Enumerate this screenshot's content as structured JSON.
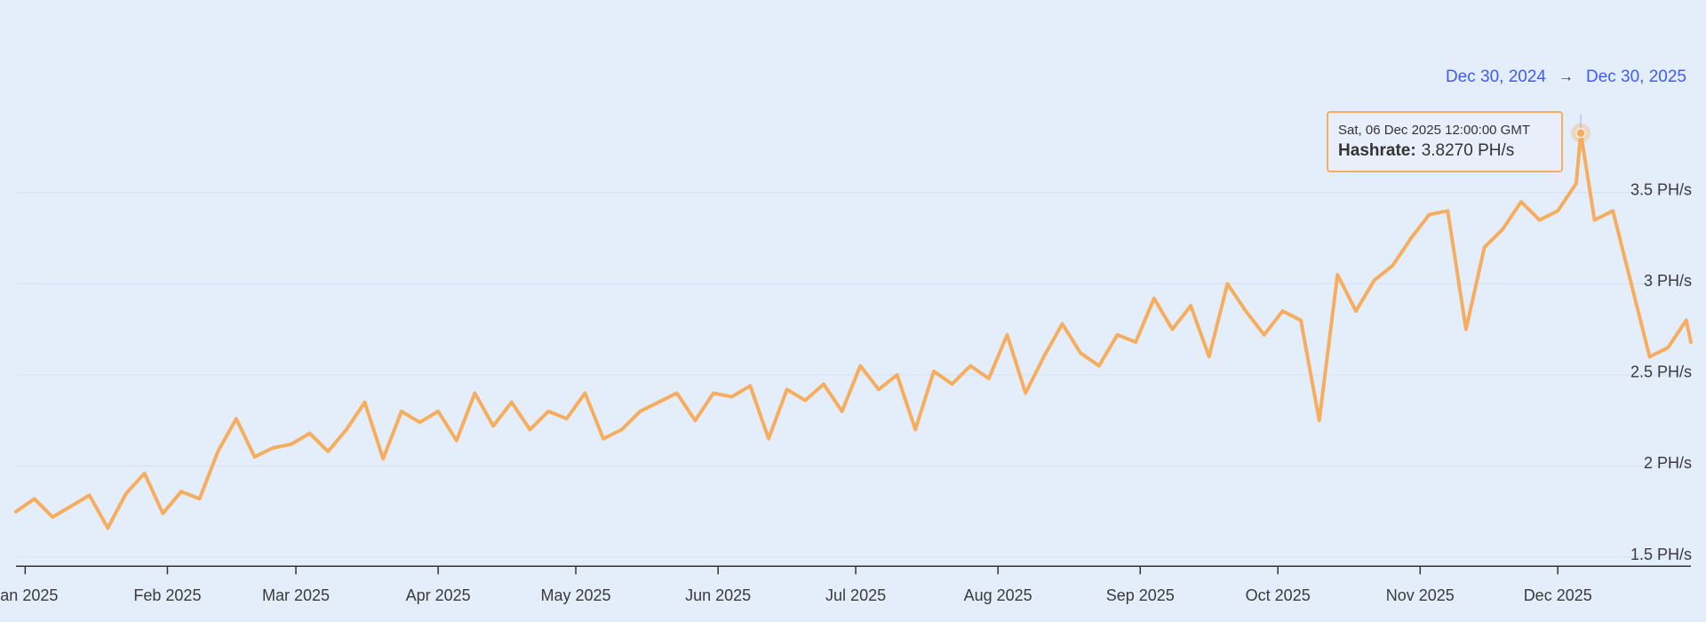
{
  "chart_data": {
    "type": "line",
    "range": {
      "start": "Dec 30, 2024",
      "separator": "→",
      "end": "Dec 30, 2025"
    },
    "x": [
      "2024-12-30",
      "2025-01-03",
      "2025-01-07",
      "2025-01-11",
      "2025-01-15",
      "2025-01-19",
      "2025-01-23",
      "2025-01-27",
      "2025-01-31",
      "2025-02-04",
      "2025-02-08",
      "2025-02-12",
      "2025-02-16",
      "2025-02-20",
      "2025-02-24",
      "2025-02-28",
      "2025-03-04",
      "2025-03-08",
      "2025-03-12",
      "2025-03-16",
      "2025-03-20",
      "2025-03-24",
      "2025-03-28",
      "2025-04-01",
      "2025-04-05",
      "2025-04-09",
      "2025-04-13",
      "2025-04-17",
      "2025-04-21",
      "2025-04-25",
      "2025-04-29",
      "2025-05-03",
      "2025-05-07",
      "2025-05-11",
      "2025-05-15",
      "2025-05-19",
      "2025-05-23",
      "2025-05-27",
      "2025-05-31",
      "2025-06-04",
      "2025-06-08",
      "2025-06-12",
      "2025-06-16",
      "2025-06-20",
      "2025-06-24",
      "2025-06-28",
      "2025-07-02",
      "2025-07-06",
      "2025-07-10",
      "2025-07-14",
      "2025-07-18",
      "2025-07-22",
      "2025-07-26",
      "2025-07-30",
      "2025-08-03",
      "2025-08-07",
      "2025-08-11",
      "2025-08-15",
      "2025-08-19",
      "2025-08-23",
      "2025-08-27",
      "2025-08-31",
      "2025-09-04",
      "2025-09-08",
      "2025-09-12",
      "2025-09-16",
      "2025-09-20",
      "2025-09-24",
      "2025-09-28",
      "2025-10-02",
      "2025-10-06",
      "2025-10-10",
      "2025-10-14",
      "2025-10-18",
      "2025-10-22",
      "2025-10-26",
      "2025-10-30",
      "2025-11-03",
      "2025-11-07",
      "2025-11-11",
      "2025-11-15",
      "2025-11-19",
      "2025-11-23",
      "2025-11-27",
      "2025-12-01",
      "2025-12-05",
      "2025-12-06",
      "2025-12-09",
      "2025-12-13",
      "2025-12-17",
      "2025-12-21",
      "2025-12-25",
      "2025-12-29",
      "2025-12-30"
    ],
    "series": [
      {
        "color": "#f6ad5e",
        "values": [
          1.75,
          1.82,
          1.72,
          1.78,
          1.84,
          1.66,
          1.85,
          1.96,
          1.74,
          1.86,
          1.82,
          2.08,
          2.26,
          2.05,
          2.1,
          2.12,
          2.18,
          2.08,
          2.2,
          2.35,
          2.04,
          2.3,
          2.24,
          2.3,
          2.14,
          2.4,
          2.22,
          2.35,
          2.2,
          2.3,
          2.26,
          2.4,
          2.15,
          2.2,
          2.3,
          2.35,
          2.4,
          2.25,
          2.4,
          2.38,
          2.44,
          2.15,
          2.42,
          2.36,
          2.45,
          2.3,
          2.55,
          2.42,
          2.5,
          2.2,
          2.52,
          2.45,
          2.55,
          2.48,
          2.72,
          2.4,
          2.6,
          2.78,
          2.62,
          2.55,
          2.72,
          2.68,
          2.92,
          2.75,
          2.88,
          2.6,
          3.0,
          2.85,
          2.72,
          2.85,
          2.8,
          2.25,
          3.05,
          2.85,
          3.02,
          3.1,
          3.25,
          3.38,
          3.4,
          2.75,
          3.2,
          3.3,
          3.45,
          3.35,
          3.4,
          3.55,
          3.827,
          3.35,
          3.4,
          3.0,
          2.6,
          2.65,
          2.8,
          2.68
        ]
      }
    ],
    "xlim": [
      "2024-12-30",
      "2025-12-30"
    ],
    "xticks": [
      {
        "value": "2025-01-01",
        "label": "Jan 2025"
      },
      {
        "value": "2025-02-01",
        "label": "Feb 2025"
      },
      {
        "value": "2025-03-01",
        "label": "Mar 2025"
      },
      {
        "value": "2025-04-01",
        "label": "Apr 2025"
      },
      {
        "value": "2025-05-01",
        "label": "May 2025"
      },
      {
        "value": "2025-06-01",
        "label": "Jun 2025"
      },
      {
        "value": "2025-07-01",
        "label": "Jul 2025"
      },
      {
        "value": "2025-08-01",
        "label": "Aug 2025"
      },
      {
        "value": "2025-09-01",
        "label": "Sep 2025"
      },
      {
        "value": "2025-10-01",
        "label": "Oct 2025"
      },
      {
        "value": "2025-11-01",
        "label": "Nov 2025"
      },
      {
        "value": "2025-12-01",
        "label": "Dec 2025"
      }
    ],
    "ylim": [
      1.45,
      3.95
    ],
    "yticks": [
      {
        "value": 1.5,
        "label": "1.5 PH/s"
      },
      {
        "value": 2,
        "label": "2 PH/s"
      },
      {
        "value": 2.5,
        "label": "2.5 PH/s"
      },
      {
        "value": 3,
        "label": "3 PH/s"
      },
      {
        "value": 3.5,
        "label": "3.5 PH/s"
      }
    ],
    "tooltip": {
      "date": "2025-12-06",
      "date_label": "Sat, 06 Dec 2025 12:00:00 GMT",
      "name": "Hashrate:",
      "value": 3.827,
      "value_label": "3.8270 PH/s"
    }
  }
}
